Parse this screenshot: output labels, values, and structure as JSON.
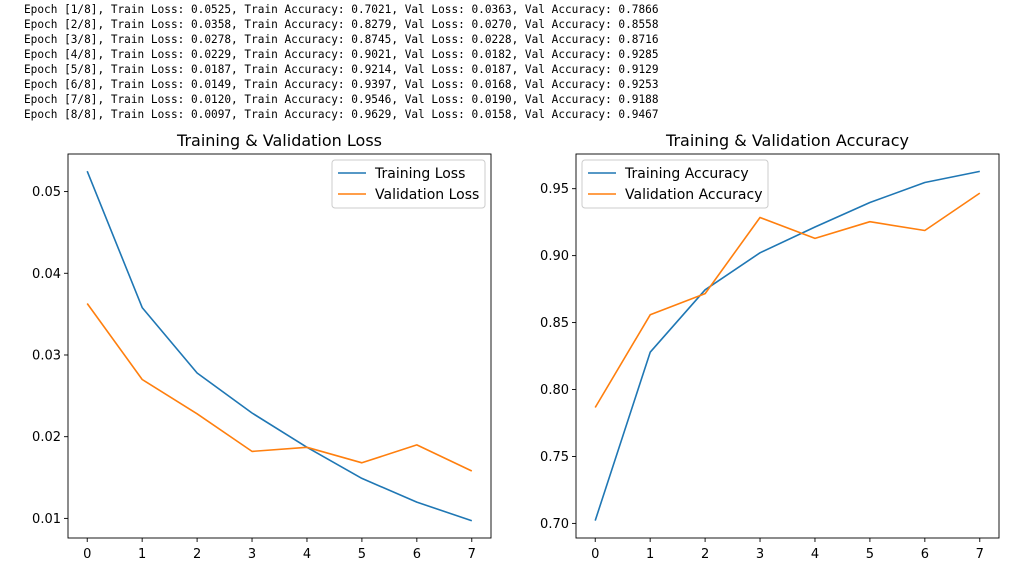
{
  "log_lines": [
    "Epoch [1/8], Train Loss: 0.0525, Train Accuracy: 0.7021, Val Loss: 0.0363, Val Accuracy: 0.7866",
    "Epoch [2/8], Train Loss: 0.0358, Train Accuracy: 0.8279, Val Loss: 0.0270, Val Accuracy: 0.8558",
    "Epoch [3/8], Train Loss: 0.0278, Train Accuracy: 0.8745, Val Loss: 0.0228, Val Accuracy: 0.8716",
    "Epoch [4/8], Train Loss: 0.0229, Train Accuracy: 0.9021, Val Loss: 0.0182, Val Accuracy: 0.9285",
    "Epoch [5/8], Train Loss: 0.0187, Train Accuracy: 0.9214, Val Loss: 0.0187, Val Accuracy: 0.9129",
    "Epoch [6/8], Train Loss: 0.0149, Train Accuracy: 0.9397, Val Loss: 0.0168, Val Accuracy: 0.9253",
    "Epoch [7/8], Train Loss: 0.0120, Train Accuracy: 0.9546, Val Loss: 0.0190, Val Accuracy: 0.9188",
    "Epoch [8/8], Train Loss: 0.0097, Train Accuracy: 0.9629, Val Loss: 0.0158, Val Accuracy: 0.9467"
  ],
  "colors": {
    "blue": "#1f77b4",
    "orange": "#ff7f0e"
  },
  "chart_data": [
    {
      "type": "line",
      "title": "Training & Validation Loss",
      "x": [
        0,
        1,
        2,
        3,
        4,
        5,
        6,
        7
      ],
      "xticks": [
        "0",
        "1",
        "2",
        "3",
        "4",
        "5",
        "6",
        "7"
      ],
      "xlim": [
        -0.35,
        7.35
      ],
      "yticks": [
        "0.01",
        "0.02",
        "0.03",
        "0.04",
        "0.05"
      ],
      "ylim": [
        0.0076,
        0.0546
      ],
      "legend": "top-right",
      "grid": false,
      "series": [
        {
          "name": "Training Loss",
          "color": "#1f77b4",
          "values": [
            0.0525,
            0.0358,
            0.0278,
            0.0229,
            0.0187,
            0.0149,
            0.012,
            0.0097
          ]
        },
        {
          "name": "Validation Loss",
          "color": "#ff7f0e",
          "values": [
            0.0363,
            0.027,
            0.0228,
            0.0182,
            0.0187,
            0.0168,
            0.019,
            0.0158
          ]
        }
      ]
    },
    {
      "type": "line",
      "title": "Training & Validation Accuracy",
      "x": [
        0,
        1,
        2,
        3,
        4,
        5,
        6,
        7
      ],
      "xticks": [
        "0",
        "1",
        "2",
        "3",
        "4",
        "5",
        "6",
        "7"
      ],
      "xlim": [
        -0.35,
        7.35
      ],
      "yticks": [
        "0.70",
        "0.75",
        "0.80",
        "0.85",
        "0.90",
        "0.95"
      ],
      "ylim": [
        0.6891,
        0.9759
      ],
      "legend": "top-left",
      "grid": false,
      "series": [
        {
          "name": "Training Accuracy",
          "color": "#1f77b4",
          "values": [
            0.7021,
            0.8279,
            0.8745,
            0.9021,
            0.9214,
            0.9397,
            0.9546,
            0.9629
          ]
        },
        {
          "name": "Validation Accuracy",
          "color": "#ff7f0e",
          "values": [
            0.7866,
            0.8558,
            0.8716,
            0.9285,
            0.9129,
            0.9253,
            0.9188,
            0.9467
          ]
        }
      ]
    }
  ]
}
